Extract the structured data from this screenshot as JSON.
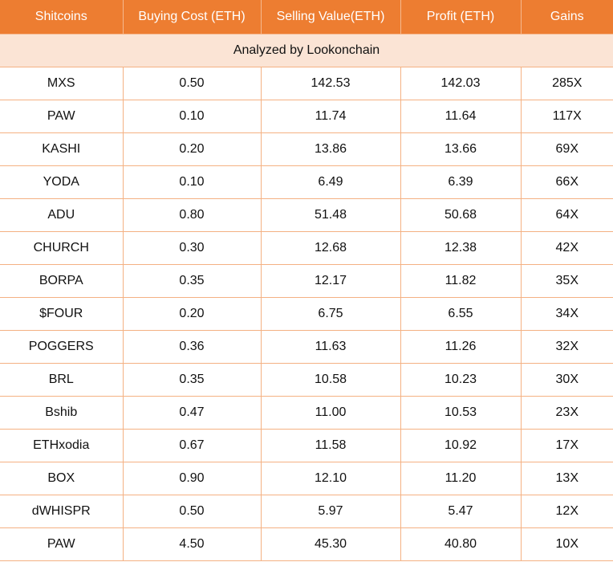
{
  "chart_data": {
    "type": "table",
    "columns": [
      "Shitcoins",
      "Buying Cost (ETH)",
      "Selling Value(ETH)",
      "Profit (ETH)",
      "Gains"
    ],
    "subtitle": "Analyzed by Lookonchain",
    "rows": [
      [
        "MXS",
        "0.50",
        "142.53",
        "142.03",
        "285X"
      ],
      [
        "PAW",
        "0.10",
        "11.74",
        "11.64",
        "117X"
      ],
      [
        "KASHI",
        "0.20",
        "13.86",
        "13.66",
        "69X"
      ],
      [
        "YODA",
        "0.10",
        "6.49",
        "6.39",
        "66X"
      ],
      [
        "ADU",
        "0.80",
        "51.48",
        "50.68",
        "64X"
      ],
      [
        "CHURCH",
        "0.30",
        "12.68",
        "12.38",
        "42X"
      ],
      [
        "BORPA",
        "0.35",
        "12.17",
        "11.82",
        "35X"
      ],
      [
        "$FOUR",
        "0.20",
        "6.75",
        "6.55",
        "34X"
      ],
      [
        "POGGERS",
        "0.36",
        "11.63",
        "11.26",
        "32X"
      ],
      [
        "BRL",
        "0.35",
        "10.58",
        "10.23",
        "30X"
      ],
      [
        "Bshib",
        "0.47",
        "11.00",
        "10.53",
        "23X"
      ],
      [
        "ETHxodia",
        "0.67",
        "11.58",
        "10.92",
        "17X"
      ],
      [
        "BOX",
        "0.90",
        "12.10",
        "11.20",
        "13X"
      ],
      [
        "dWHISPR",
        "0.50",
        "5.97",
        "5.47",
        "12X"
      ],
      [
        "PAW",
        "4.50",
        "45.30",
        "40.80",
        "10X"
      ]
    ]
  },
  "colors": {
    "header_bg": "#ed7d31",
    "header_text": "#ffffff",
    "subheader_bg": "#fbe4d5",
    "grid_line": "#f4b183"
  }
}
